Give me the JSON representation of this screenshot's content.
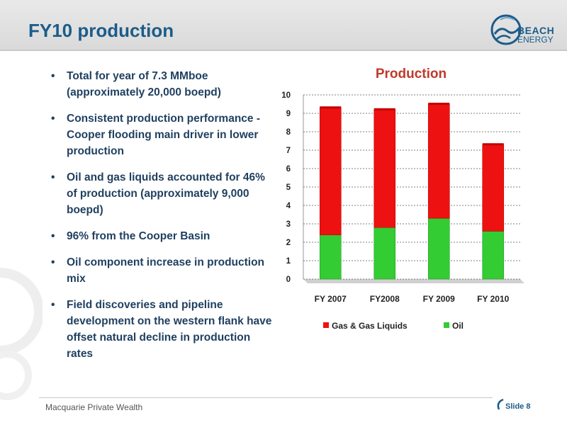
{
  "slide": {
    "title": "FY10 production",
    "logo_line1": "BEACH",
    "logo_line2": "ENERGY",
    "footer": "Macquarie Private Wealth",
    "slide_number": "Slide 8"
  },
  "bullets": [
    "Total for year of 7.3 MMboe (approximately 20,000 boepd)",
    "Consistent production performance - Cooper  flooding main driver in lower production",
    "Oil and gas liquids accounted for 46% of production (approximately 9,000 boepd)",
    "96% from the Cooper Basin",
    "Oil component increase in production mix",
    "Field discoveries and pipeline development on the western flank have offset natural decline in production rates"
  ],
  "colors": {
    "gas": "#ee1111",
    "oil": "#33cc33",
    "title_blue": "#1b5c8a",
    "chart_title": "#c0392b"
  },
  "chart_data": {
    "type": "bar",
    "stacked": true,
    "title": "Production",
    "categories": [
      "FY 2007",
      "FY2008",
      "FY 2009",
      "FY 2010"
    ],
    "series": [
      {
        "name": "Oil",
        "values": [
          2.4,
          2.8,
          3.3,
          2.6
        ]
      },
      {
        "name": "Gas & Gas Liquids",
        "values": [
          6.9,
          6.4,
          6.2,
          4.7
        ]
      }
    ],
    "ylim": [
      0,
      10
    ],
    "yticks": [
      "0",
      "1",
      "2",
      "3",
      "4",
      "5",
      "6",
      "7",
      "8",
      "9",
      "10"
    ],
    "grid": true,
    "legend_position": "bottom",
    "legend": [
      "Gas & Gas Liquids",
      "Oil"
    ]
  }
}
